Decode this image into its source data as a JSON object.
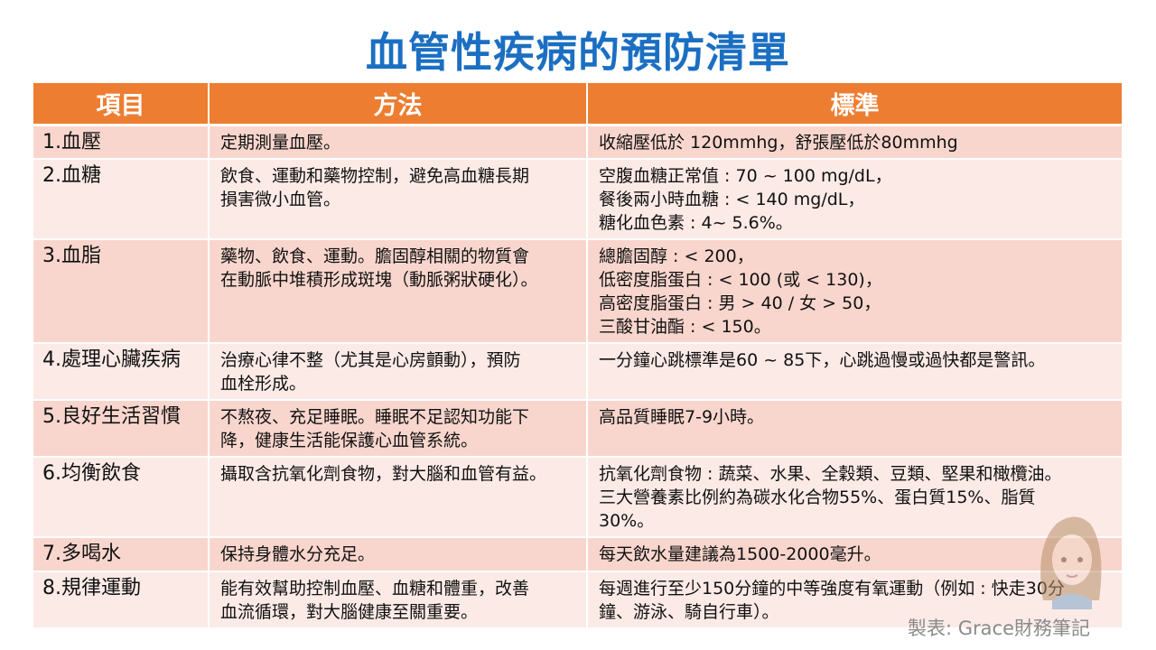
{
  "title": "血管性疾病的預防清單",
  "table": {
    "headers": [
      "項目",
      "方法",
      "標準"
    ],
    "rows": [
      {
        "item": "1.血壓",
        "method": [
          "定期測量血壓。"
        ],
        "standard": [
          "收縮壓低於 120mmhg，舒張壓低於80mmhg"
        ]
      },
      {
        "item": "2.血糖",
        "method": [
          "飲食、運動和藥物控制，避免高血糖長期",
          "損害微小血管。"
        ],
        "standard": [
          "空腹血糖正常值 : 70 ~ 100 mg/dL，",
          "餐後兩小時血糖 : < 140 mg/dL，",
          "糖化血色素 : 4~ 5.6%。"
        ]
      },
      {
        "item": "3.血脂",
        "method": [
          "藥物、飲食、運動。膽固醇相關的物質會",
          "在動脈中堆積形成斑塊（動脈粥狀硬化）。"
        ],
        "standard": [
          "總膽固醇 : < 200，",
          "低密度脂蛋白 : < 100 (或 < 130)，",
          "高密度脂蛋白 : 男 > 40 / 女 > 50，",
          "三酸甘油酯 : < 150。"
        ]
      },
      {
        "item": "4.處理心臟疾病",
        "method": [
          "治療心律不整（尤其是心房顫動），預防",
          "血栓形成。"
        ],
        "standard": [
          "一分鐘心跳標準是60 ~ 85下，心跳過慢或過快都是警訊。"
        ]
      },
      {
        "item": "5.良好生活習慣",
        "method": [
          "不熬夜、充足睡眠。睡眠不足認知功能下",
          "降，健康生活能保護心血管系統。"
        ],
        "standard": [
          "高品質睡眠7-9小時。"
        ]
      },
      {
        "item": "6.均衡飲食",
        "method": [
          "攝取含抗氧化劑食物，對大腦和血管有益。"
        ],
        "standard": [
          "抗氧化劑食物 : 蔬菜、水果、全穀類、豆類、堅果和橄欖油。",
          "三大營養素比例約為碳水化合物55%、蛋白質15%、脂質",
          "30%。"
        ]
      },
      {
        "item": "7.多喝水",
        "method": [
          "保持身體水分充足。"
        ],
        "standard": [
          "每天飲水量建議為1500-2000毫升。"
        ]
      },
      {
        "item": "8.規律運動",
        "method": [
          "能有效幫助控制血壓、血糖和體重，改善",
          "血流循環，對大腦健康至關重要。"
        ],
        "standard": [
          "每週進行至少150分鐘的中等強度有氧運動（例如 : 快走30分",
          "鐘、游泳、騎自行車）。"
        ]
      }
    ]
  },
  "credit": "製表: Grace財務筆記",
  "colors": {
    "title": "#1b6fc2",
    "header": "#ed7d31",
    "row_odd": "#f8d6cd",
    "row_even": "#fbeae6"
  }
}
